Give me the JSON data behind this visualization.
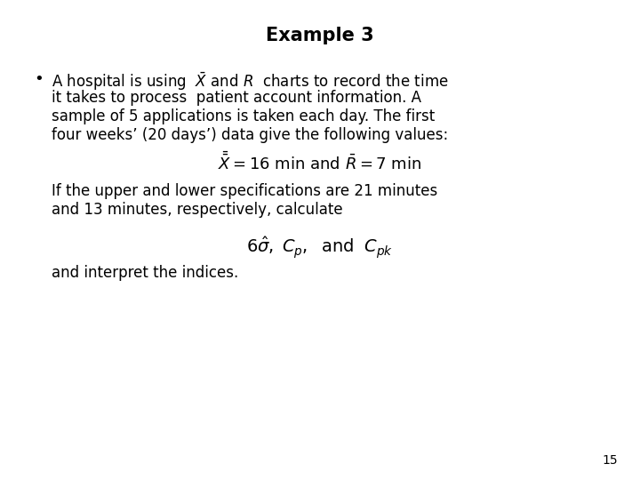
{
  "title": "Example 3",
  "title_fontsize": 15,
  "title_fontweight": "bold",
  "background_color": "#ffffff",
  "text_color": "#000000",
  "page_number": "15",
  "bullet_line1": "A hospital is using  $\\bar{X}$ and $R$  charts to record the time",
  "bullet_line2": "it takes to process  patient account information. A",
  "bullet_line3": "sample of 5 applications is taken each day. The first",
  "bullet_line4": "four weeks’ (20 days’) data give the following values:",
  "formula1": "$\\bar{\\bar{X}} = 16$ min and $\\bar{R} = 7$ min",
  "text_if": "If the upper and lower specifications are 21 minutes",
  "text_and13": "and 13 minutes, respectively, calculate",
  "formula2": "$6\\hat{\\sigma},\\; C_p,\\;$ and $\\; C_{pk}$",
  "text_interpret": "and interpret the indices.",
  "font_size_body": 12,
  "font_size_formula1": 13,
  "font_size_formula2": 14,
  "font_size_page": 10
}
